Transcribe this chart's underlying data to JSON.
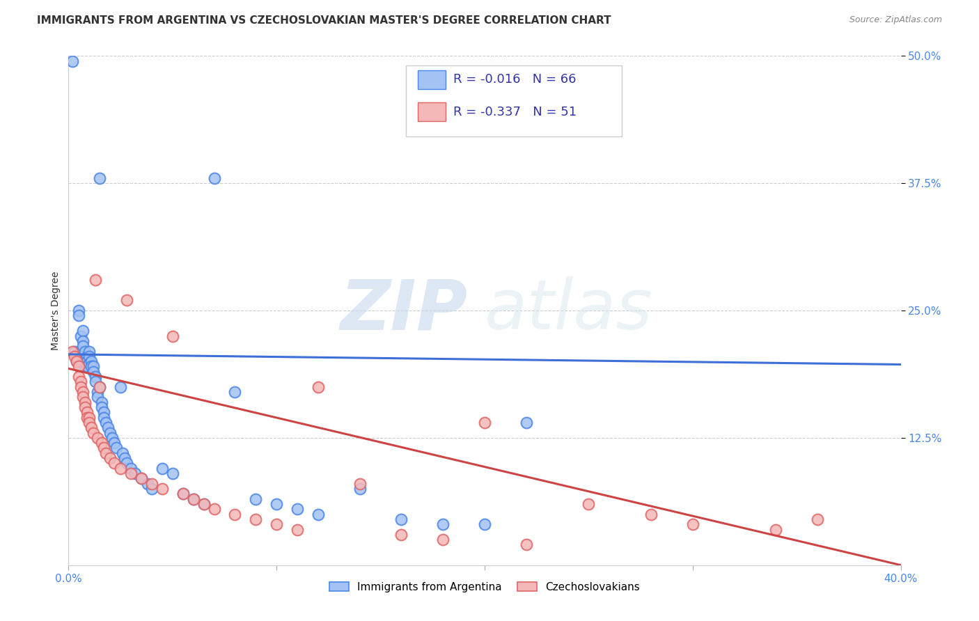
{
  "title": "IMMIGRANTS FROM ARGENTINA VS CZECHOSLOVAKIAN MASTER'S DEGREE CORRELATION CHART",
  "source": "Source: ZipAtlas.com",
  "ylabel": "Master's Degree",
  "xlim": [
    0.0,
    0.4
  ],
  "ylim": [
    0.0,
    0.5
  ],
  "ytick_positions": [
    0.125,
    0.25,
    0.375,
    0.5
  ],
  "xtick_positions": [
    0.0,
    0.1,
    0.2,
    0.3,
    0.4
  ],
  "blue_color": "#a4c2f4",
  "pink_color": "#f4b8b8",
  "blue_edge_color": "#4a86e8",
  "pink_edge_color": "#e06666",
  "blue_line_color": "#3d6fd6",
  "pink_line_color": "#cc4444",
  "legend_r_blue": "R = -0.016",
  "legend_n_blue": "N = 66",
  "legend_r_pink": "R = -0.337",
  "legend_n_pink": "N = 51",
  "legend_label_blue": "Immigrants from Argentina",
  "legend_label_pink": "Czechoslovakians",
  "watermark_zip": "ZIP",
  "watermark_atlas": "atlas",
  "blue_trend_x": [
    0.0,
    0.4
  ],
  "blue_trend_y": [
    0.207,
    0.197
  ],
  "pink_trend_x": [
    0.0,
    0.4
  ],
  "pink_trend_y": [
    0.193,
    0.0
  ],
  "grid_color": "#cccccc",
  "background_color": "#ffffff",
  "title_color": "#333333",
  "tick_color": "#4a86e8",
  "blue_x": [
    0.002,
    0.003,
    0.004,
    0.004,
    0.005,
    0.005,
    0.005,
    0.006,
    0.006,
    0.007,
    0.007,
    0.007,
    0.008,
    0.008,
    0.008,
    0.009,
    0.009,
    0.009,
    0.01,
    0.01,
    0.01,
    0.011,
    0.011,
    0.012,
    0.012,
    0.013,
    0.013,
    0.014,
    0.014,
    0.015,
    0.015,
    0.016,
    0.016,
    0.017,
    0.017,
    0.018,
    0.019,
    0.02,
    0.021,
    0.022,
    0.023,
    0.025,
    0.026,
    0.027,
    0.028,
    0.03,
    0.032,
    0.035,
    0.038,
    0.04,
    0.045,
    0.05,
    0.055,
    0.06,
    0.065,
    0.07,
    0.08,
    0.09,
    0.1,
    0.11,
    0.12,
    0.14,
    0.16,
    0.18,
    0.2,
    0.22
  ],
  "blue_y": [
    0.495,
    0.21,
    0.205,
    0.2,
    0.25,
    0.245,
    0.2,
    0.225,
    0.21,
    0.23,
    0.22,
    0.215,
    0.2,
    0.195,
    0.21,
    0.205,
    0.2,
    0.195,
    0.21,
    0.205,
    0.198,
    0.2,
    0.195,
    0.195,
    0.19,
    0.185,
    0.18,
    0.17,
    0.165,
    0.38,
    0.175,
    0.16,
    0.155,
    0.15,
    0.145,
    0.14,
    0.135,
    0.13,
    0.125,
    0.12,
    0.115,
    0.175,
    0.11,
    0.105,
    0.1,
    0.095,
    0.09,
    0.085,
    0.08,
    0.075,
    0.095,
    0.09,
    0.07,
    0.065,
    0.06,
    0.38,
    0.17,
    0.065,
    0.06,
    0.055,
    0.05,
    0.075,
    0.045,
    0.04,
    0.04,
    0.14
  ],
  "pink_x": [
    0.002,
    0.003,
    0.004,
    0.005,
    0.005,
    0.006,
    0.006,
    0.007,
    0.007,
    0.008,
    0.008,
    0.009,
    0.009,
    0.01,
    0.01,
    0.011,
    0.012,
    0.013,
    0.014,
    0.015,
    0.016,
    0.017,
    0.018,
    0.02,
    0.022,
    0.025,
    0.028,
    0.03,
    0.035,
    0.04,
    0.045,
    0.05,
    0.055,
    0.06,
    0.065,
    0.07,
    0.08,
    0.09,
    0.1,
    0.11,
    0.12,
    0.14,
    0.16,
    0.18,
    0.2,
    0.22,
    0.25,
    0.28,
    0.3,
    0.34,
    0.36
  ],
  "pink_y": [
    0.21,
    0.205,
    0.2,
    0.195,
    0.185,
    0.18,
    0.175,
    0.17,
    0.165,
    0.16,
    0.155,
    0.15,
    0.145,
    0.145,
    0.14,
    0.135,
    0.13,
    0.28,
    0.125,
    0.175,
    0.12,
    0.115,
    0.11,
    0.105,
    0.1,
    0.095,
    0.26,
    0.09,
    0.085,
    0.08,
    0.075,
    0.225,
    0.07,
    0.065,
    0.06,
    0.055,
    0.05,
    0.045,
    0.04,
    0.035,
    0.175,
    0.08,
    0.03,
    0.025,
    0.14,
    0.02,
    0.06,
    0.05,
    0.04,
    0.035,
    0.045
  ]
}
